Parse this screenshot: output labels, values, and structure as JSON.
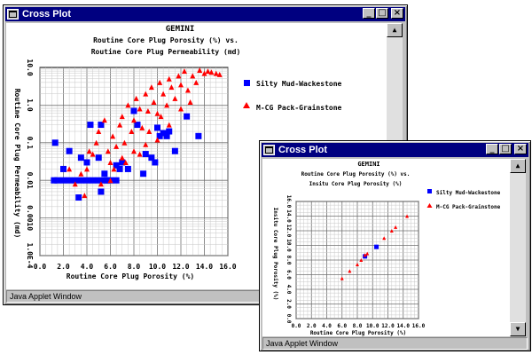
{
  "windows": [
    {
      "title": "Cross Plot",
      "status": "Java Applet Window",
      "chart_data": {
        "type": "scatter",
        "title": "GEMINI",
        "subtitle_lines": [
          "Routine Core Plug Porosity (%) vs.",
          "Routine Core Plug Permeability (md)"
        ],
        "xlabel": "Routine Core Plug Porosity (%)",
        "ylabel": "Routine Core Plug Permeability (md)",
        "xlim": [
          0,
          16
        ],
        "ylim": [
          0.0001,
          10
        ],
        "y_scale": "log",
        "x_ticks": [
          "0.0",
          "2.0",
          "4.0",
          "6.0",
          "8.0",
          "10.0",
          "12.0",
          "14.0",
          "16.0"
        ],
        "y_ticks": [
          "1.0E-4",
          "0.0010",
          "0.01",
          "0.1",
          "1.0",
          "10.0"
        ],
        "grid": true,
        "legend_position": "right",
        "series": [
          {
            "name": "Silty Mud-Wackestone",
            "marker": "square",
            "color": "#0000ff",
            "points": [
              [
                1.2,
                0.01
              ],
              [
                1.5,
                0.01
              ],
              [
                2.0,
                0.01
              ],
              [
                2.5,
                0.01
              ],
              [
                3.0,
                0.01
              ],
              [
                3.5,
                0.01
              ],
              [
                4.0,
                0.01
              ],
              [
                4.5,
                0.01
              ],
              [
                5.0,
                0.01
              ],
              [
                5.5,
                0.01
              ],
              [
                6.0,
                0.01
              ],
              [
                6.5,
                0.01
              ],
              [
                1.3,
                0.1
              ],
              [
                2.5,
                0.06
              ],
              [
                3.5,
                0.04
              ],
              [
                4.0,
                0.03
              ],
              [
                5.0,
                0.04
              ],
              [
                5.2,
                0.005
              ],
              [
                5.5,
                0.015
              ],
              [
                3.3,
                0.0035
              ],
              [
                4.3,
                0.3
              ],
              [
                5.2,
                0.3
              ],
              [
                5.7,
                0.01
              ],
              [
                6.5,
                0.025
              ],
              [
                6.8,
                0.02
              ],
              [
                7.0,
                0.03
              ],
              [
                7.5,
                0.02
              ],
              [
                8.0,
                0.7
              ],
              [
                8.3,
                0.3
              ],
              [
                8.8,
                0.015
              ],
              [
                9.0,
                0.05
              ],
              [
                9.5,
                0.04
              ],
              [
                9.8,
                0.03
              ],
              [
                10.0,
                0.25
              ],
              [
                10.2,
                0.15
              ],
              [
                10.5,
                0.18
              ],
              [
                10.8,
                0.15
              ],
              [
                11.0,
                0.2
              ],
              [
                11.5,
                0.06
              ],
              [
                12.5,
                0.5
              ],
              [
                13.5,
                0.15
              ],
              [
                2.0,
                0.02
              ]
            ]
          },
          {
            "name": "M-CG Pack-Grainstone",
            "marker": "triangle",
            "color": "#ff0000",
            "points": [
              [
                2.5,
                0.02
              ],
              [
                3.0,
                0.008
              ],
              [
                3.8,
                0.004
              ],
              [
                4.0,
                0.02
              ],
              [
                4.5,
                0.05
              ],
              [
                4.8,
                0.1
              ],
              [
                5.0,
                0.2
              ],
              [
                5.5,
                0.4
              ],
              [
                5.8,
                0.06
              ],
              [
                6.0,
                0.03
              ],
              [
                6.2,
                0.15
              ],
              [
                6.5,
                0.08
              ],
              [
                6.8,
                0.3
              ],
              [
                7.0,
                0.5
              ],
              [
                7.2,
                0.1
              ],
              [
                7.5,
                1.0
              ],
              [
                7.8,
                0.2
              ],
              [
                8.0,
                0.4
              ],
              [
                8.2,
                1.5
              ],
              [
                8.5,
                0.8
              ],
              [
                8.7,
                0.25
              ],
              [
                9.0,
                2.0
              ],
              [
                9.2,
                0.7
              ],
              [
                9.5,
                3.0
              ],
              [
                9.7,
                1.2
              ],
              [
                10.0,
                0.6
              ],
              [
                10.2,
                4.0
              ],
              [
                10.5,
                2.0
              ],
              [
                10.8,
                1.0
              ],
              [
                11.0,
                5.0
              ],
              [
                11.2,
                3.0
              ],
              [
                11.5,
                1.5
              ],
              [
                11.8,
                6.0
              ],
              [
                12.0,
                3.5
              ],
              [
                12.3,
                8.0
              ],
              [
                12.6,
                2.5
              ],
              [
                13.0,
                6.0
              ],
              [
                13.3,
                4.0
              ],
              [
                13.6,
                8.5
              ],
              [
                14.0,
                7.0
              ],
              [
                14.3,
                8.0
              ],
              [
                14.6,
                7.5
              ],
              [
                15.0,
                7.0
              ],
              [
                15.3,
                6.5
              ],
              [
                6.0,
                0.01
              ],
              [
                7.0,
                0.04
              ],
              [
                8.0,
                0.06
              ],
              [
                9.0,
                0.09
              ],
              [
                10.0,
                0.12
              ],
              [
                11.0,
                0.3
              ],
              [
                12.0,
                0.8
              ],
              [
                3.5,
                0.015
              ],
              [
                5.2,
                0.008
              ],
              [
                6.3,
                0.02
              ],
              [
                4.2,
                0.06
              ],
              [
                7.3,
                0.03
              ],
              [
                8.5,
                0.05
              ],
              [
                9.3,
                0.2
              ],
              [
                10.3,
                0.5
              ],
              [
                12.8,
                1.2
              ]
            ]
          }
        ]
      }
    },
    {
      "title": "Cross Plot",
      "status": "Java Applet Window",
      "chart_data": {
        "type": "scatter",
        "title": "GEMINI",
        "subtitle_lines": [
          "Routine Core Plug Porosity (%) vs.",
          "Insitu Core Plug Porosity (%)"
        ],
        "xlabel": "Routine Core Plug Porosity (%)",
        "ylabel": "Insitu Core Plug Porosity (%)",
        "xlim": [
          0,
          16
        ],
        "ylim": [
          0,
          16
        ],
        "x_ticks": [
          "0.0",
          "2.0",
          "4.0",
          "6.0",
          "8.0",
          "10.0",
          "12.0",
          "14.0",
          "16.0"
        ],
        "y_ticks": [
          "0.0",
          "2.0",
          "4.0",
          "6.0",
          "8.0",
          "10.0",
          "12.0",
          "14.0",
          "16.0"
        ],
        "grid": true,
        "legend_position": "right",
        "series": [
          {
            "name": "Silty Mud-Wackestone",
            "marker": "square",
            "color": "#0000ff",
            "points": [
              [
                9.0,
                8.5
              ],
              [
                10.5,
                9.8
              ]
            ]
          },
          {
            "name": "M-CG Pack-Grainstone",
            "marker": "triangle",
            "color": "#ff0000",
            "points": [
              [
                6.0,
                5.5
              ],
              [
                7.0,
                6.5
              ],
              [
                8.0,
                7.4
              ],
              [
                8.5,
                8.0
              ],
              [
                9.0,
                8.7
              ],
              [
                9.3,
                8.9
              ],
              [
                11.5,
                11.0
              ],
              [
                12.5,
                12.0
              ],
              [
                13.0,
                12.5
              ],
              [
                14.5,
                14.0
              ]
            ]
          }
        ]
      }
    }
  ]
}
